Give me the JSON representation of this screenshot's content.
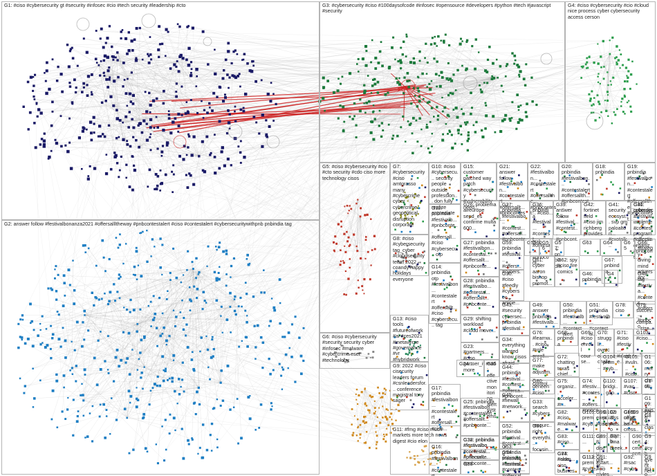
{
  "colors": {
    "g1": "#1a1a66",
    "g2": "#1f7fc4",
    "g3": "#1d7a3c",
    "g4": "#2e9e4e",
    "g5": "#c0392b",
    "g6": "#888888",
    "g7": "#8a8a1a",
    "g8": "#7a7a7a",
    "g9": "#d08a1e",
    "g11": "#d7a24a",
    "g13": "#2c8c60",
    "edge": "#9a9a9a",
    "highlight": "#cc2222"
  },
  "groups": [
    {
      "id": "G1",
      "label": "G1: #ciso #cybersecurity gt #security #infosec #cio #tech security #leadership #cto"
    },
    {
      "id": "G2",
      "label": "G2: answer follow #festivalbonanza2021 #offersallltheway #pnbcontestalert #ciso #contestalert #cybersecuritywithpnb pnbindia tag"
    },
    {
      "id": "G3",
      "label": "G3: #cybersecurity #ciso #100daysofcode #infosec #opensource #developers #python #tech #javascript #security"
    },
    {
      "id": "G4",
      "label": "G4: #ciso #cybersecurity #cio #cloud nice process cyber cybersecurity access cerson"
    },
    {
      "id": "G5",
      "label": "G5: #ciso #cybersecurity #cio #cto security #cdo ciso more technology cisos"
    },
    {
      "id": "G6",
      "label": "G6: #ciso #cybersecurity #security security cyber #infosec #malware #cybercrime eset #technology"
    },
    {
      "id": "G7",
      "label": "G7: #cybersecurity #ciso amtgrasso many #cybercrime cyber cybercrime geopolitical disruption corporate"
    },
    {
      "id": "G8",
      "label": "G8: #ciso #cybersecurity tag_cyber #cloudsecurity team 2022 coandy happy holidays everyone"
    },
    {
      "id": "G9",
      "label": "G9: 2022 #ciso cisecurity leaders forum #csnleadersfor... conference magistral tony sager"
    },
    {
      "id": "G10",
      "label": "G10: #ciso #cybersecu... security people outside profession... don fully realize appreciate"
    },
    {
      "id": "G11",
      "label": "G11: #fmg #ciso much markets more tech news digest #cio elon"
    },
    {
      "id": "G12",
      "label": "G12: pnbindia #festivalb... #pnbconte... #offersall... #ciso #cybersecu... otp"
    },
    {
      "id": "G13",
      "label": "G13: #ciso tools #futureofwork #ai #ces2021 #metaverse #governance #vr #hybridwork"
    },
    {
      "id": "G14",
      "label": "G14: pnbindia otp #festivalbon... #contestalert #offersallt... #ciso #cybersecu... tag"
    },
    {
      "id": "G15",
      "label": "G15: customer patched way patch #cybersecurity #vulnerability need..."
    },
    {
      "id": "G16",
      "label": "G16: pnbindia #festivalbon... #contestalert #pnbconte..."
    },
    {
      "id": "G17",
      "label": "G17: pnbindia #festivalbon... #contestalert #offersall... #ciso..."
    },
    {
      "id": "G18",
      "label": "G18: pnbindia"
    },
    {
      "id": "G19",
      "label": "G19: pnbindia #festivalbon... #contestalert #offersallthe... #pnbcontest..."
    },
    {
      "id": "G20",
      "label": "G20: pnbindia #festivalbon... #contestalert #offersallth... #pnbcontest..."
    },
    {
      "id": "G21",
      "label": "G21: answer follow #festivalbon... #contestalert #offersallt... #pnbcontest..."
    },
    {
      "id": "G22",
      "label": "G22: #festivalbon... #contestalert #offersallthe... #pnbcontest... #ciso..."
    },
    {
      "id": "G23",
      "label": "G23: #gartners... #ciso gartner_it read more"
    },
    {
      "id": "G24",
      "label": "G24:..."
    },
    {
      "id": "G25",
      "label": "G25: pnbindia #festivalbon... #contestalert #offersallt... #pnbconte..."
    },
    {
      "id": "G26",
      "label": "G26: problema aireurope sepd_es confirme multa 600..."
    },
    {
      "id": "G27",
      "label": "G27: pnbindia #festivalbon... #contestal... #offersallt... #pnbconte..."
    },
    {
      "id": "G28",
      "label": "G28: pnbindia #festivalbo... #contestal... #offersallt... #pnbconte..."
    },
    {
      "id": "G29",
      "label": "G29: shifting workload #cloud move..."
    },
    {
      "id": "G30",
      "label": "G30: #ciso #feedly #cybersec... article..."
    },
    {
      "id": "G31",
      "label": "G31: cybersec... impleme... program protectin organiz..."
    },
    {
      "id": "G32",
      "label": "G32: pnbindia #festivalbo... #contestal... #pnbconte..."
    },
    {
      "id": "G33",
      "label": "G33: search #cybers... resourc..."
    },
    {
      "id": "G34",
      "label": "G34: everything wanted know cisos afraid..."
    },
    {
      "id": "G35",
      "label": "G35: effective monitoring alert systems..."
    },
    {
      "id": "G36",
      "label": "G36: pnbindia #festival... #contest... #offersa... #pnbcont..."
    },
    {
      "id": "G37",
      "label": "G37: pnbindia #festivalbo... #contest... #offersall... #pnbconte..."
    },
    {
      "id": "G38",
      "label": "G38: pnbindia #festivalbo... #contestal... #offersall... #pnbconte..."
    },
    {
      "id": "G39",
      "label": "G39: answer follow #festival... #contest... #pnbcont..."
    },
    {
      "id": "G40",
      "label": "G40: pnbindia #festival... #contest... #offersa... #pnbcont..."
    },
    {
      "id": "G41",
      "label": "G41: security ecosyst... svp gm paloalton... #cxotalk..."
    },
    {
      "id": "G42",
      "label": "G42: fortinet field #ciso jim richberg provides..."
    },
    {
      "id": "G43",
      "label": "G43: #security cybersec... pnbindia #festival..."
    },
    {
      "id": "G44",
      "label": "G44: pnbindia #festival... #contest... #offersa... #pnbcont..."
    },
    {
      "id": "G45",
      "label": "G45: #fiewall #network..."
    },
    {
      "id": "G46",
      "label": "G46: pnbindia"
    },
    {
      "id": "G47",
      "label": "G47:"
    },
    {
      "id": "G48",
      "label": "G48: tag #festiva... #contes... #offers... #pnbco..."
    },
    {
      "id": "G49",
      "label": "G49: answer pnbindia #festivalb..."
    },
    {
      "id": "G50",
      "label": "G50: pnbindia #festivalb... #contestalert"
    },
    {
      "id": "G51",
      "label": "G51: pnbindia #festivalb... #contestal..."
    },
    {
      "id": "G52",
      "label": "G52: pnbindia #festival... #contest..."
    },
    {
      "id": "G53",
      "label": "G53: pnbindia #festival... #contest..."
    },
    {
      "id": "G54",
      "label": "G54: pnbindia #festival... #contest... #offersal..."
    },
    {
      "id": "G55",
      "label": "G55"
    },
    {
      "id": "G56",
      "label": "G56"
    },
    {
      "id": "G57",
      "label": "G57: pnbindia"
    },
    {
      "id": "G58",
      "label": "G58"
    },
    {
      "id": "G59",
      "label": "G59: pnbindia #festival... #offers... #cybers..."
    },
    {
      "id": "G60",
      "label": "G60"
    },
    {
      "id": "G61",
      "label": "G61: cyber aaron bishop promot..."
    },
    {
      "id": "G62",
      "label": "G62: spy #ciso fire comics"
    },
    {
      "id": "G63",
      "label": "G63"
    },
    {
      "id": "G64",
      "label": "G64"
    },
    {
      "id": "G65",
      "label": "G65"
    },
    {
      "id": "G66",
      "label": "G66: strategy diving mind adversary..."
    },
    {
      "id": "G67",
      "label": "G67: pnbindia"
    },
    {
      "id": "G68",
      "label": "G68: pnbindia"
    },
    {
      "id": "G69",
      "label": "G69: #ciso enroll course..."
    },
    {
      "id": "G70",
      "label": "G70: struggli... overco... challe..."
    },
    {
      "id": "G71",
      "label": "G71: #ciso #festiv... #incide..."
    },
    {
      "id": "G72",
      "label": "G72: chatting texas chief..."
    },
    {
      "id": "G73",
      "label": "G73: #ciso ciso busines..."
    },
    {
      "id": "G74",
      "label": "G74: #festiv... #contes... #offers... #pnbco..."
    },
    {
      "id": "G75",
      "label": "G75: organiz... acceler... #r..."
    },
    {
      "id": "G76",
      "label": "G76: #learnw... #ciso #role enroll..."
    },
    {
      "id": "G77",
      "label": "G77: make adjustm... control..."
    },
    {
      "id": "G78",
      "label": "G78: ciso"
    },
    {
      "id": "G79",
      "label": "G79: succes... compa... size..."
    },
    {
      "id": "G80",
      "label": "G80: deneen #ciso"
    },
    {
      "id": "G81",
      "label": "G81: right everythi... focusin..."
    },
    {
      "id": "G82",
      "label": "G82: #ciso #malware..."
    },
    {
      "id": "G83",
      "label": "G83: #ciso..."
    },
    {
      "id": "G84",
      "label": "G84: #aldm..."
    },
    {
      "id": "G85",
      "label": "G85: news art cress..."
    },
    {
      "id": "G86",
      "label": "G86: clas..."
    },
    {
      "id": "G87",
      "label": "G87: tima breek..."
    },
    {
      "id": "G88",
      "label": "G88: discu... great..."
    },
    {
      "id": "G89",
      "label": "G89: ..."
    },
    {
      "id": "G90",
      "label": "G90: cert... cmm... cert..."
    },
    {
      "id": "G91",
      "label": "G91: #start... #cio myles..."
    },
    {
      "id": "G92",
      "label": "G92: #rsac #cyb..."
    },
    {
      "id": "G93",
      "label": "G93: #cio..."
    },
    {
      "id": "G94",
      "label": "G94: #cyb... event netw..."
    },
    {
      "id": "G95",
      "label": "G95: offce bala..."
    },
    {
      "id": "G96",
      "label": "G96: ..."
    },
    {
      "id": "G97",
      "label": "G97: ..."
    },
    {
      "id": "G98",
      "label": "G98: #ciso #cyb..."
    },
    {
      "id": "G99",
      "label": "G99: exec... #ciso..."
    },
    {
      "id": "G100",
      "label": "G100: ..."
    },
    {
      "id": "G101",
      "label": "G101: prem #cyb..."
    },
    {
      "id": "G102",
      "label": "G102: pci dss requir..."
    },
    {
      "id": "G103",
      "label": "G103: #ciso..."
    },
    {
      "id": "G104",
      "label": "G104: prem #cyb..."
    },
    {
      "id": "G105",
      "label": "G105: #vuln... #ciso..."
    },
    {
      "id": "G106",
      "label": "G106: merry christ..."
    },
    {
      "id": "G107",
      "label": "G107: #vac... #ciso..."
    },
    {
      "id": "G108",
      "label": "G108: ..."
    },
    {
      "id": "G109",
      "label": "G109: exist"
    },
    {
      "id": "G110",
      "label": "G110: bridgi... gap..."
    },
    {
      "id": "G111",
      "label": "G111: ..."
    },
    {
      "id": "G112",
      "label": "G112: prem #cybe..."
    },
    {
      "id": "G113",
      "label": "G113: ..."
    }
  ]
}
